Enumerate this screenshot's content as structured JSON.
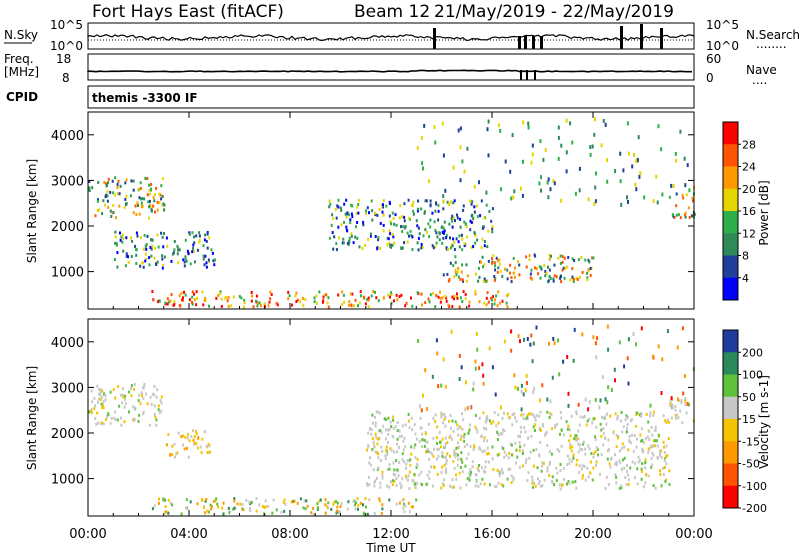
{
  "header": {
    "title": "Fort Hays East (fitACF)",
    "beam": "Beam 12",
    "date_range": "21/May/2019 - 22/May/2019"
  },
  "panels": {
    "nsky": {
      "label": "N.Sky",
      "left_ticks": [
        "10^5",
        "10^0"
      ],
      "right_label": "N.Search",
      "right_ticks": [
        "10^5",
        "10^0"
      ],
      "right_dots": "........"
    },
    "freq": {
      "label_line1": "Freq.",
      "label_line2": "[MHz]",
      "left_ticks": [
        "18",
        "8"
      ],
      "right_label": "Nave",
      "right_ticks": [
        "60",
        "0"
      ],
      "right_dots": "...."
    },
    "cpid": {
      "label": "CPID",
      "text": "themis -3300 IF"
    }
  },
  "power_panel": {
    "ylabel": "Slant Range [km]",
    "colorbar_label": "Power [dB]",
    "colorbar_ticks": [
      "28",
      "24",
      "20",
      "16",
      "12",
      "8",
      "4"
    ],
    "colors": [
      "#ff0000",
      "#ff5500",
      "#ff9900",
      "#e6d600",
      "#2db04a",
      "#2e8b57",
      "#1f3f99",
      "#0000ff"
    ]
  },
  "velocity_panel": {
    "ylabel": "Slant Range [km]",
    "colorbar_label": "Velocity [m s-1]",
    "colorbar_ticks": [
      "200",
      "100",
      "50",
      "15",
      "-15",
      "-50",
      "-100",
      "-200"
    ],
    "colors": [
      "#1e3c9c",
      "#2b8a5a",
      "#5fc23a",
      "#c8c8c8",
      "#f5c400",
      "#ff9900",
      "#ff5500",
      "#ff0000"
    ]
  },
  "xaxis": {
    "label": "Time UT",
    "ticks": [
      "00:00",
      "04:00",
      "08:00",
      "12:00",
      "16:00",
      "20:00",
      "00:00"
    ]
  },
  "chart_data": {
    "type": "heatmap",
    "title": "Fort Hays East (fitACF)",
    "subtitle": "Beam 12 21/May/2019 - 22/May/2019",
    "xlabel": "Time UT",
    "x_ticks": [
      "00:00",
      "04:00",
      "08:00",
      "12:00",
      "16:00",
      "20:00",
      "00:00"
    ],
    "xlim_hours": [
      0,
      24
    ],
    "panels": [
      {
        "name": "Power",
        "ylabel": "Slant Range [km]",
        "ylim": [
          180,
          4500
        ],
        "y_ticks": [
          1000,
          2000,
          3000,
          4000
        ],
        "colorbar": "Power [dB]",
        "colorbar_ticks": [
          4,
          8,
          12,
          16,
          20,
          24,
          28
        ],
        "regions": [
          {
            "t": [
              0.0,
              3.0
            ],
            "range": [
              2200,
              3100
            ],
            "level": "high"
          },
          {
            "t": [
              1.0,
              5.0
            ],
            "range": [
              1100,
              1900
            ],
            "level": "medium"
          },
          {
            "t": [
              2.5,
              17.0
            ],
            "range": [
              250,
              600
            ],
            "level": "very-high"
          },
          {
            "t": [
              9.5,
              16.0
            ],
            "range": [
              1500,
              2600
            ],
            "level": "medium"
          },
          {
            "t": [
              14.0,
              20.0
            ],
            "range": [
              800,
              1400
            ],
            "level": "high"
          },
          {
            "t": [
              23.0,
              24.0
            ],
            "range": [
              2200,
              2800
            ],
            "level": "high"
          }
        ]
      },
      {
        "name": "Velocity",
        "ylabel": "Slant Range [km]",
        "ylim": [
          180,
          4500
        ],
        "y_ticks": [
          1000,
          2000,
          3000,
          4000
        ],
        "colorbar": "Velocity [m s-1]",
        "colorbar_ticks": [
          -200,
          -100,
          -50,
          -15,
          15,
          50,
          100,
          200
        ],
        "regions": [
          {
            "t": [
              0.0,
              3.0
            ],
            "range": [
              2200,
              3100
            ],
            "level": "ground"
          },
          {
            "t": [
              3.0,
              4.8
            ],
            "range": [
              1500,
              2100
            ],
            "level": "negative"
          },
          {
            "t": [
              2.5,
              13.0
            ],
            "range": [
              250,
              600
            ],
            "level": "mixed"
          },
          {
            "t": [
              11.0,
              23.0
            ],
            "range": [
              800,
              2500
            ],
            "level": "ground"
          },
          {
            "t": [
              23.0,
              24.0
            ],
            "range": [
              2200,
              2800
            ],
            "level": "ground"
          }
        ]
      }
    ]
  }
}
